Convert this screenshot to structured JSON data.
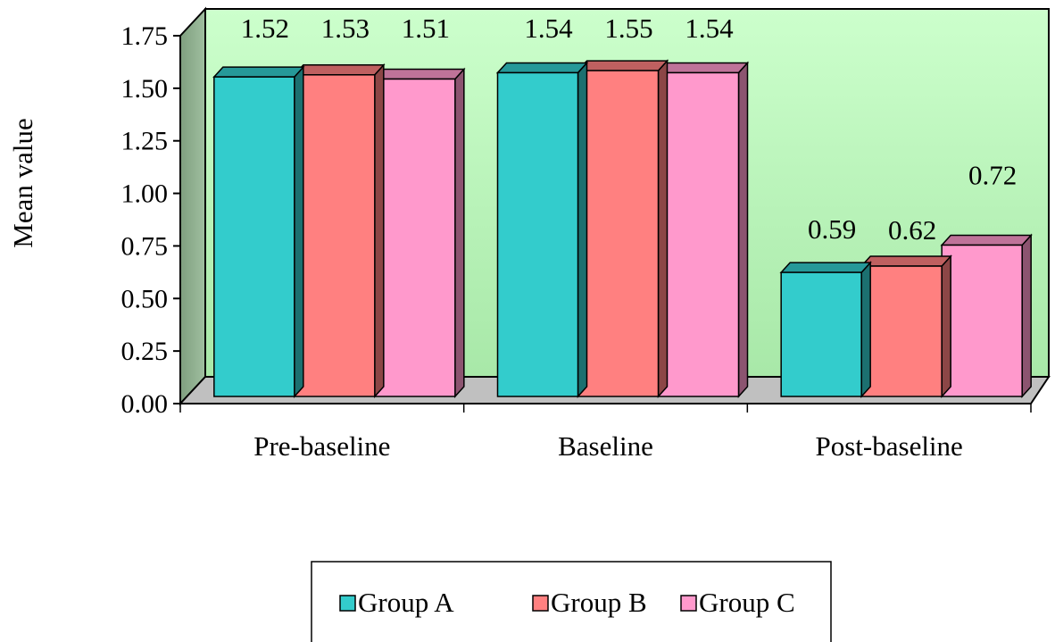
{
  "chart_data": {
    "type": "bar",
    "title": "",
    "xlabel": "",
    "ylabel": "Mean value",
    "ylim": [
      0,
      1.75
    ],
    "yticks": [
      "0.00",
      "0.25",
      "0.50",
      "0.75",
      "1.00",
      "1.25",
      "1.50",
      "1.75"
    ],
    "categories": [
      "Pre-baseline",
      "Baseline",
      "Post-baseline"
    ],
    "series": [
      {
        "name": "Group A",
        "values": [
          1.52,
          1.54,
          0.59
        ],
        "labels": [
          "1.52",
          "1.54",
          "0.59"
        ],
        "color": "#33CCCC"
      },
      {
        "name": "Group B",
        "values": [
          1.53,
          1.55,
          0.62
        ],
        "labels": [
          "1.53",
          "1.55",
          "0.62"
        ],
        "color": "#FF8080"
      },
      {
        "name": "Group C",
        "values": [
          1.51,
          1.54,
          0.72
        ],
        "labels": [
          "1.51",
          "1.54",
          "0.72"
        ],
        "color": "#FF99CC"
      }
    ],
    "legend_position": "bottom",
    "style": "3d-clustered-column",
    "colors": {
      "back_wall_light": "#CCFFCC",
      "back_wall_dark": "#99DD99",
      "side_wall": "#8FAF8F",
      "floor": "#C0C0C0"
    }
  }
}
